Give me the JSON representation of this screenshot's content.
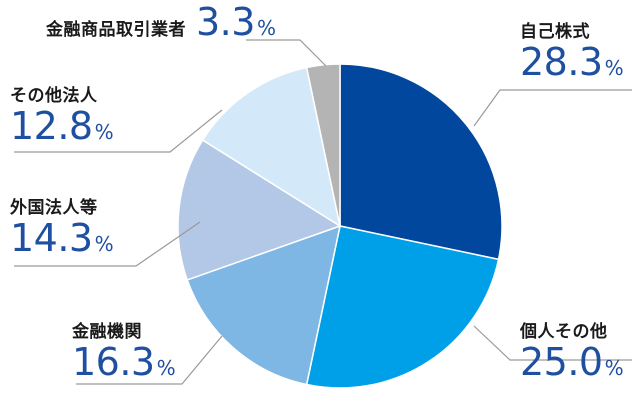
{
  "chart_data": {
    "type": "pie",
    "slices": [
      {
        "label": "自己株式",
        "value": 28.3,
        "value_text": "28.3",
        "unit": "%",
        "color": "#00479d"
      },
      {
        "label": "個人その他",
        "value": 25.0,
        "value_text": "25.0",
        "unit": "%",
        "color": "#00a0e9"
      },
      {
        "label": "金融機関",
        "value": 16.3,
        "value_text": "16.3",
        "unit": "%",
        "color": "#7eb6e4"
      },
      {
        "label": "外国法人等",
        "value": 14.3,
        "value_text": "14.3",
        "unit": "%",
        "color": "#b3c7e6"
      },
      {
        "label": "その他法人",
        "value": 12.8,
        "value_text": "12.8",
        "unit": "%",
        "color": "#d3e9f9"
      },
      {
        "label": "金融商品取引業者",
        "value": 3.3,
        "value_text": "3.3",
        "unit": "%",
        "color": "#b4b4b5"
      }
    ],
    "start_angle": "12 o'clock",
    "direction": "clockwise",
    "legend": "none"
  }
}
